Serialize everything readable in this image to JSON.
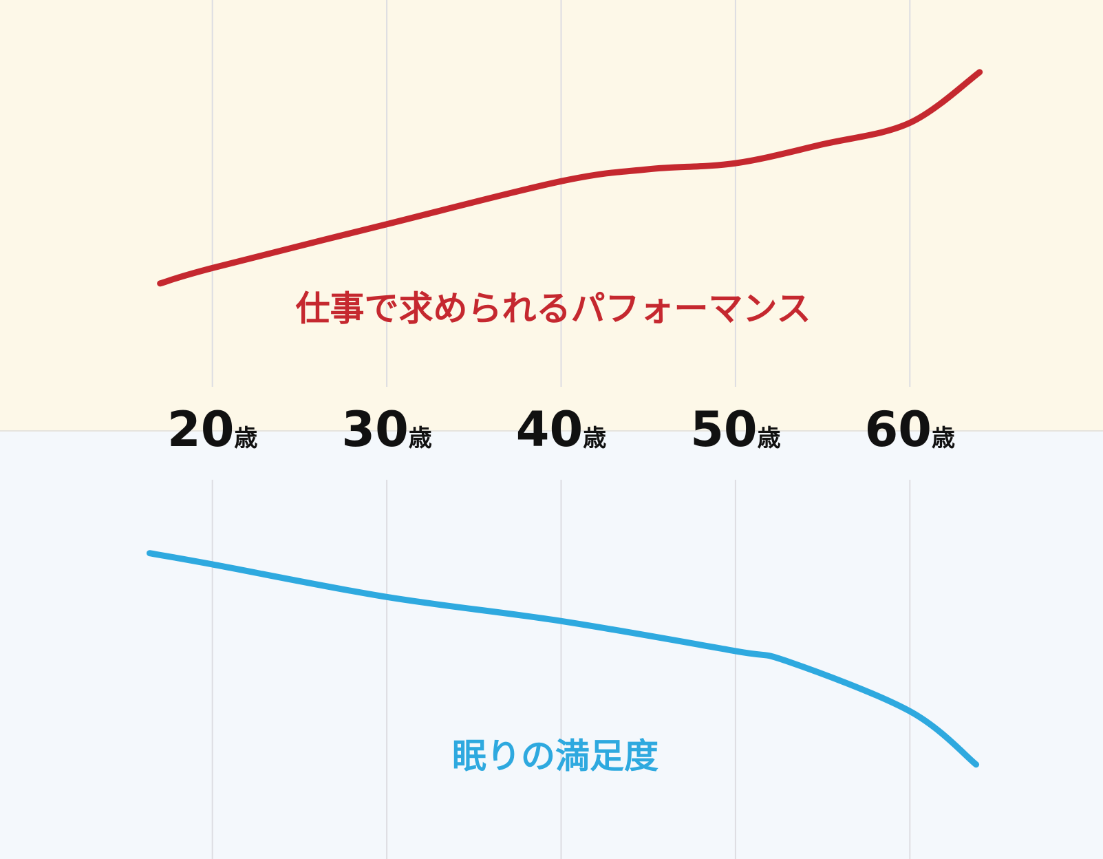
{
  "chart_data": {
    "type": "line",
    "xunit": "歳",
    "xlim": [
      15,
      65
    ],
    "xticks": [
      20,
      30,
      40,
      50,
      60
    ],
    "ylim": [
      0,
      100
    ],
    "grid": true,
    "series": [
      {
        "name": "仕事で求められるパフォーマンス",
        "color": "#c5282f",
        "x": [
          17,
          20,
          30,
          40,
          45,
          50,
          55,
          60,
          64
        ],
        "values": [
          67.0,
          68.8,
          73.9,
          78.9,
          80.3,
          81.0,
          83.2,
          85.7,
          91.6
        ]
      },
      {
        "name": "眠りの満足度",
        "color": "#2ea9df",
        "x": [
          16.4,
          20,
          30,
          40,
          50,
          53,
          60,
          63.8
        ],
        "values": [
          35.6,
          34.3,
          30.5,
          27.7,
          24.2,
          23.0,
          17.2,
          11.0
        ]
      }
    ]
  }
}
